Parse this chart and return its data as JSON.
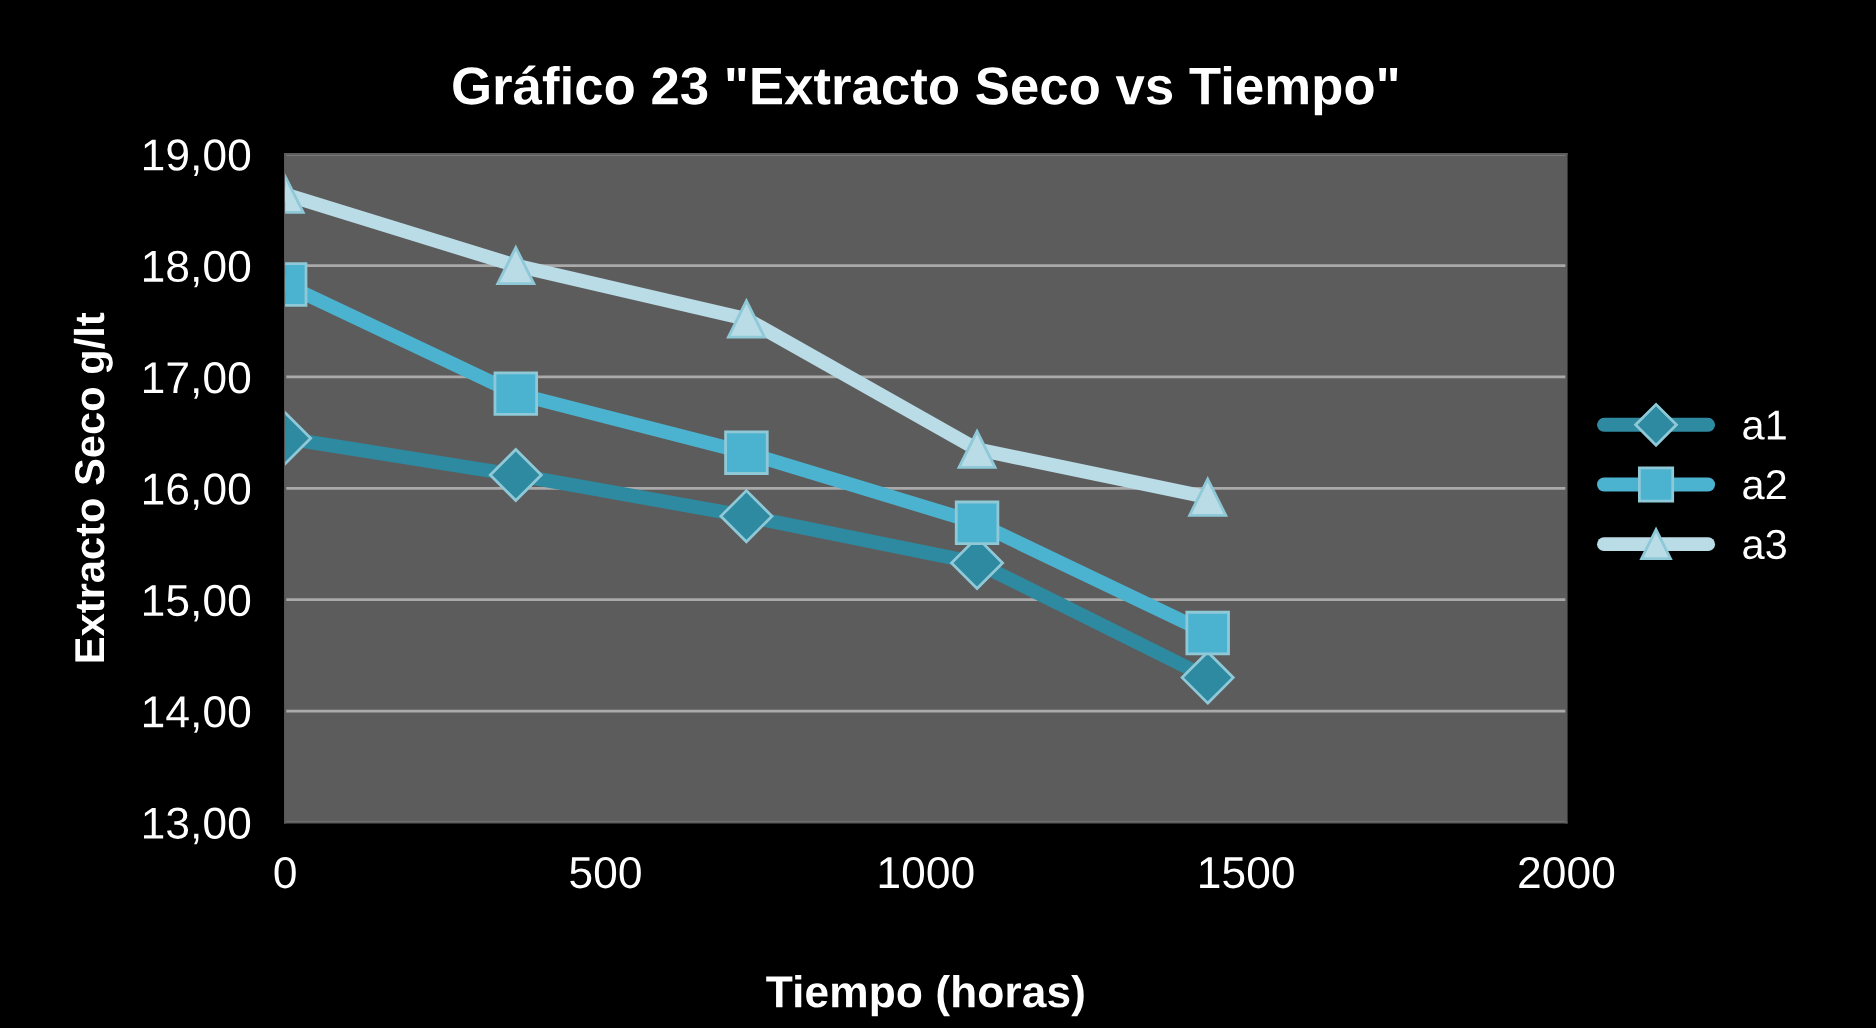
{
  "chart_data": {
    "type": "line",
    "title": "Gráfico 23 \"Extracto Seco vs Tiempo\"",
    "xlabel": "Tiempo (horas)",
    "ylabel": "Extracto Seco g/lt",
    "x": [
      0,
      360,
      720,
      1080,
      1440
    ],
    "series": [
      {
        "name": "a1",
        "color": "#2e8aa0",
        "marker": "diamond",
        "values": [
          16.45,
          16.12,
          15.75,
          15.33,
          14.3
        ]
      },
      {
        "name": "a2",
        "color": "#4bb3cf",
        "marker": "square",
        "values": [
          17.83,
          16.85,
          16.32,
          15.69,
          14.7
        ]
      },
      {
        "name": "a3",
        "color": "#b9dce6",
        "marker": "triangle",
        "values": [
          18.64,
          18.0,
          17.52,
          16.35,
          15.92
        ]
      }
    ],
    "xlim": [
      0,
      2000
    ],
    "xticks": [
      0,
      500,
      1000,
      1500,
      2000
    ],
    "ylim": [
      13,
      19
    ],
    "yticks": [
      {
        "value": 13,
        "label": "13,00"
      },
      {
        "value": 14,
        "label": "14,00"
      },
      {
        "value": 15,
        "label": "15,00"
      },
      {
        "value": 16,
        "label": "16,00"
      },
      {
        "value": 17,
        "label": "17,00"
      },
      {
        "value": 18,
        "label": "18,00"
      },
      {
        "value": 19,
        "label": "19,00"
      }
    ],
    "grid": "y",
    "legend": "right",
    "line_style": "solid"
  }
}
